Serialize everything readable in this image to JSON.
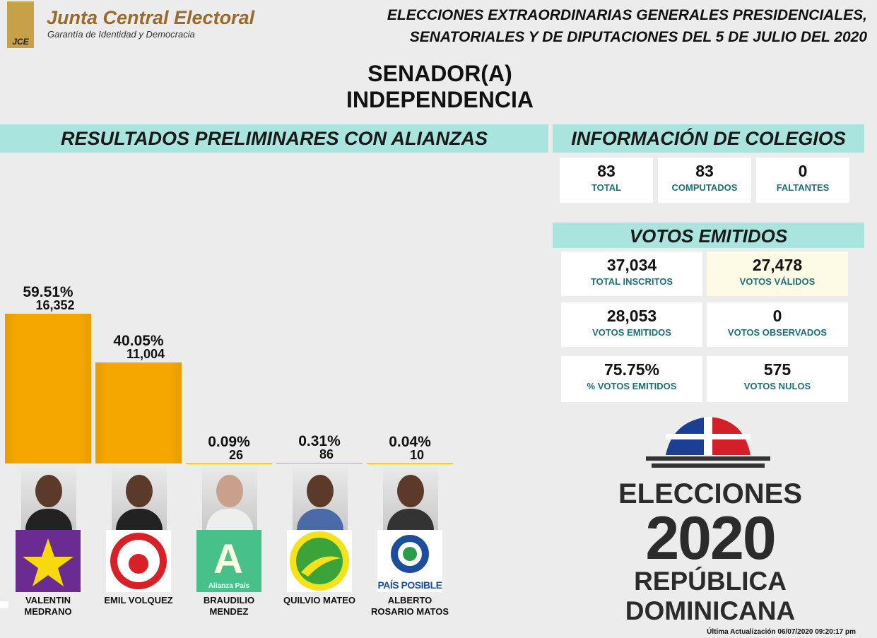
{
  "header": {
    "org": "Junta Central Electoral",
    "tagline": "Garantía de Identidad y Democracia",
    "logo": "JCE",
    "title_lines": [
      "ELECCIONES EXTRAORDINARIAS GENERALES PRESIDENCIALES,",
      "SENATORIALES Y DE DIPUTACIONES DEL 5 DE JULIO DEL 2020"
    ],
    "position": "SENADOR(A)",
    "province": "INDEPENDENCIA"
  },
  "chart_data": {
    "type": "bar",
    "title": "RESULTADOS PRELIMINARES CON ALIANZAS",
    "categories": [
      [
        "VALENTIN",
        "MEDRANO"
      ],
      [
        "EMIL VOLQUEZ"
      ],
      [
        "BRAUDILIO",
        "MENDEZ"
      ],
      [
        "QUILVIO MATEO"
      ],
      [
        "ALBERTO",
        "ROSARIO MATOS"
      ]
    ],
    "values": [
      59.51,
      40.05,
      0.09,
      0.31,
      0.04
    ],
    "value_labels": [
      "59.51%",
      "40.05%",
      "0.09%",
      "0.31%",
      "0.04%"
    ],
    "votes": [
      16352,
      11004,
      26,
      86,
      10
    ],
    "vote_labels": [
      "16,352",
      "11,004",
      "26",
      "86",
      "10"
    ],
    "color": "#f5a700"
  },
  "colegios": {
    "title": "INFORMACIÓN DE COLEGIOS",
    "cells": [
      {
        "value": "83",
        "label": "TOTAL"
      },
      {
        "value": "83",
        "label": "COMPUTADOS"
      },
      {
        "value": "0",
        "label": "FALTANTES"
      }
    ]
  },
  "votos": {
    "title": "VOTOS EMITIDOS",
    "cells": [
      {
        "value": "37,034",
        "label": "TOTAL INSCRITOS"
      },
      {
        "value": "27,478",
        "label": "VOTOS VÁLIDOS"
      },
      {
        "value": "28,053",
        "label": "VOTOS EMITIDOS"
      },
      {
        "value": "0",
        "label": "VOTOS OBSERVADOS"
      },
      {
        "value": "75.75%",
        "label": "% VOTOS EMITIDOS"
      },
      {
        "value": "575",
        "label": "VOTOS NULOS"
      }
    ]
  },
  "brand": {
    "lines": [
      "ELECCIONES",
      "2020",
      "REPÚBLICA",
      "DOMINICANA"
    ],
    "party_logo_text": [
      "Alianza País",
      "PAÍS POSIBLE"
    ]
  },
  "footer": "Última Actualización 06/07/2020 09:20:17 pm"
}
